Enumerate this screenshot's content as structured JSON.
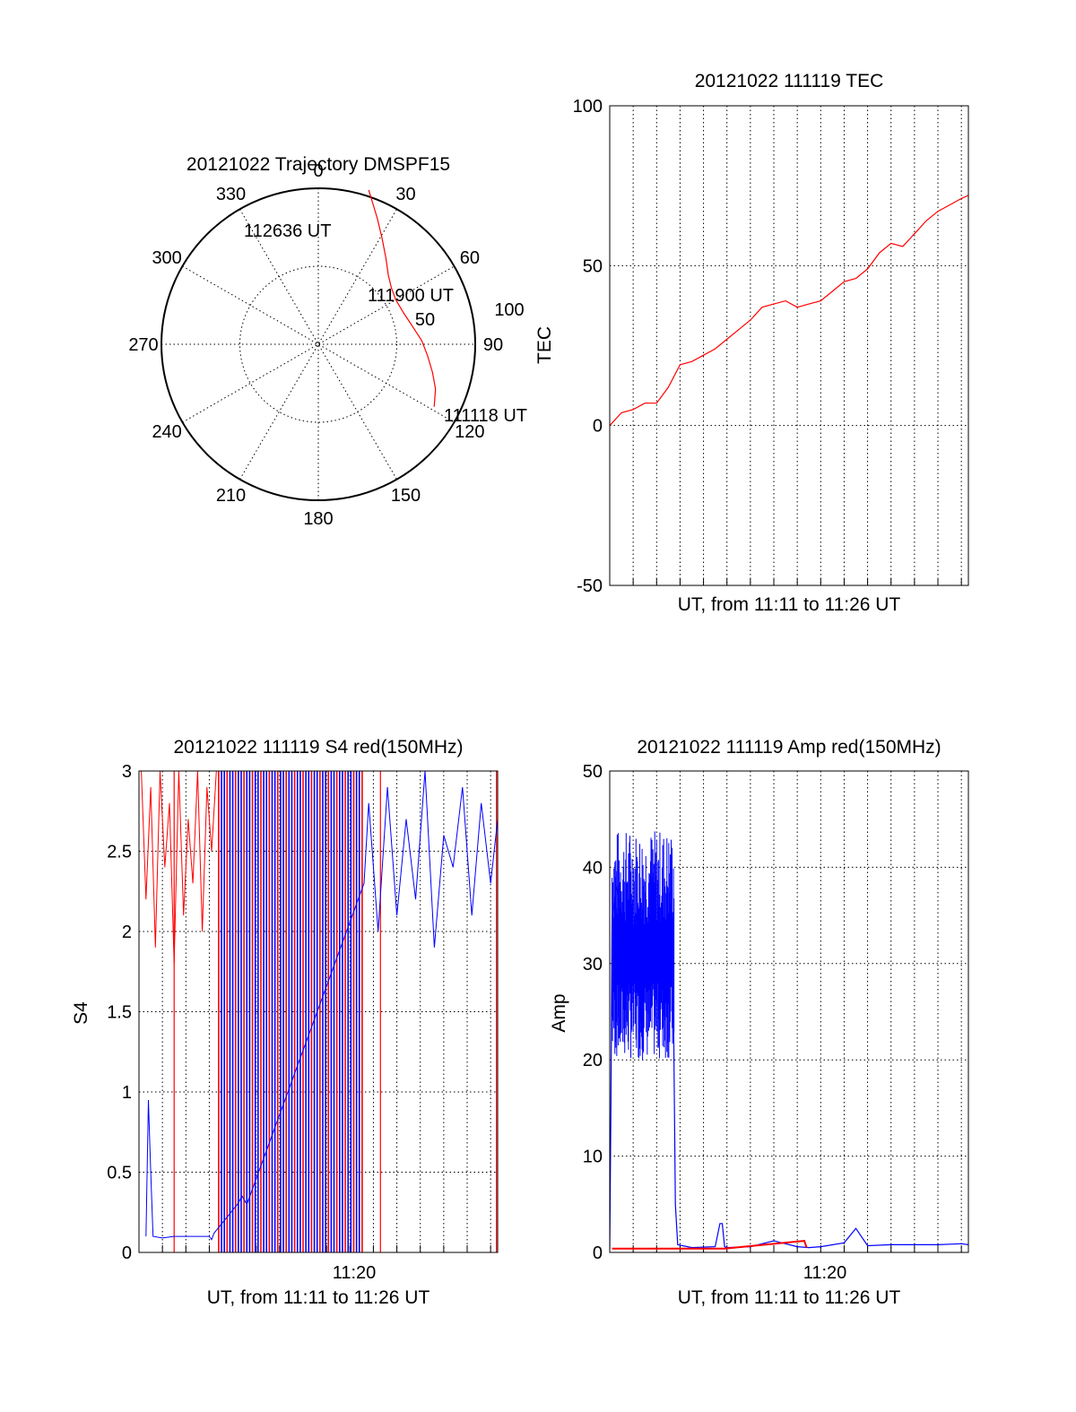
{
  "chart_data": [
    {
      "type": "polar",
      "title": "20121022 Trajectory DMSPF15",
      "angle_labels": [
        "0",
        "30",
        "60",
        "90",
        "120",
        "150",
        "180",
        "210",
        "240",
        "270",
        "300",
        "330"
      ],
      "radial_labels": [
        "50",
        "100"
      ],
      "rmax": 100,
      "trajectory": {
        "color": "#ff0000",
        "points": [
          {
            "az": 118.5,
            "r": 84
          },
          {
            "az": 111,
            "r": 80
          },
          {
            "az": 104,
            "r": 75
          },
          {
            "az": 96,
            "r": 70
          },
          {
            "az": 88,
            "r": 66
          },
          {
            "az": 79,
            "r": 61
          },
          {
            "az": 70,
            "r": 58
          },
          {
            "az": 60,
            "r": 57
          },
          {
            "az": 52,
            "r": 59
          },
          {
            "az": 45,
            "r": 63
          },
          {
            "az": 38,
            "r": 70
          },
          {
            "az": 31,
            "r": 79
          },
          {
            "az": 25,
            "r": 89
          },
          {
            "az": 20,
            "r": 99
          },
          {
            "az": 18,
            "r": 104
          }
        ],
        "annotations": [
          "111118 UT",
          "111900 UT",
          "112636 UT"
        ]
      }
    },
    {
      "type": "line",
      "title": "20121022 111119 TEC",
      "xlabel": "UT, from 11:11 to 11:26 UT",
      "ylabel": "TEC",
      "ylim": [
        -50,
        100
      ],
      "yticks": [
        "-50",
        "0",
        "50",
        "100"
      ],
      "xlim": [
        0,
        15.3
      ],
      "grid": true,
      "series": [
        {
          "color": "#ff0000",
          "x": [
            0,
            0.5,
            1.0,
            1.5,
            2.0,
            2.5,
            3.0,
            3.5,
            4.0,
            4.5,
            5.0,
            5.5,
            6.0,
            6.5,
            7.0,
            7.5,
            8.0,
            8.5,
            9.0,
            9.5,
            10.0,
            10.5,
            11.0,
            11.5,
            12.0,
            12.5,
            13.0,
            13.5,
            14.0,
            14.5,
            15.0,
            15.3
          ],
          "y": [
            0,
            4,
            5,
            7,
            7,
            12,
            19,
            20,
            22,
            24,
            27,
            30,
            33,
            37,
            38,
            39,
            37,
            38,
            39,
            42,
            45,
            46,
            49,
            54,
            57,
            56,
            60,
            64,
            67,
            69,
            71,
            72
          ]
        }
      ]
    },
    {
      "type": "line",
      "title": "20121022 111119 S4 red(150MHz)",
      "xlabel": "UT, from 11:11 to 11:26 UT",
      "ylabel": "S4",
      "ylim": [
        0,
        3
      ],
      "yticks": [
        "0",
        "0.5",
        "1",
        "1.5",
        "2",
        "2.5",
        "3"
      ],
      "xlim": [
        0,
        15.3
      ],
      "xtick_label": "11:20",
      "grid": true,
      "series": [
        {
          "color": "#ff0000",
          "x": [
            0.1,
            0.3,
            0.5,
            0.7,
            0.9,
            1.1,
            1.3,
            1.5,
            1.7,
            1.9,
            2.1,
            2.3,
            2.5,
            2.7,
            2.9,
            3.1,
            3.3
          ],
          "y": [
            3,
            2.2,
            2.9,
            1.9,
            3,
            2.4,
            2.8,
            1.8,
            3,
            2.1,
            2.7,
            2.3,
            3,
            2.0,
            2.9,
            2.5,
            3
          ]
        },
        {
          "color": "#0000ff",
          "x": [
            0.3,
            0.4,
            0.5,
            0.6,
            1.0,
            1.5,
            2.0,
            2.5,
            3.0,
            3.1,
            3.2,
            4.2,
            4.4,
            4.6,
            9.6,
            9.8,
            10.2,
            10.6,
            11.0,
            11.4,
            11.8,
            12.2,
            12.6,
            13.0,
            13.4,
            13.8,
            14.2,
            14.6,
            15.0,
            15.3
          ],
          "y": [
            0.1,
            0.95,
            0.5,
            0.1,
            0.09,
            0.1,
            0.1,
            0.1,
            0.1,
            0.08,
            0.12,
            0.3,
            0.35,
            0.3,
            2.3,
            2.8,
            2.0,
            2.9,
            2.1,
            2.7,
            2.2,
            3.0,
            1.9,
            2.6,
            2.4,
            2.9,
            2.1,
            2.8,
            2.3,
            2.7
          ]
        }
      ]
    },
    {
      "type": "line",
      "title": "20121022 111119 Amp red(150MHz)",
      "xlabel": "UT, from 11:11 to 11:26 UT",
      "ylabel": "Amp",
      "ylim": [
        0,
        50
      ],
      "yticks": [
        "0",
        "10",
        "20",
        "30",
        "40",
        "50"
      ],
      "xlim": [
        0,
        15.3
      ],
      "xtick_label": "11:20",
      "grid": true,
      "series": [
        {
          "color": "#0000ff",
          "x": [
            0,
            0.05,
            0.1,
            0.3,
            0.6,
            0.9,
            1.2,
            1.5,
            1.8,
            2.1,
            2.4,
            2.7,
            2.8,
            2.9,
            3.5,
            4.5,
            4.7,
            4.8,
            4.9,
            5.0,
            6.0,
            7.0,
            8.0,
            8.5,
            9.0,
            10.0,
            10.5,
            11.0,
            12.0,
            13.0,
            14.0,
            15.0,
            15.3
          ],
          "y": [
            0.3,
            15,
            35,
            38,
            34,
            30,
            36,
            29,
            33,
            28,
            31,
            30,
            5,
            0.8,
            0.5,
            0.6,
            3,
            3,
            0.6,
            0.5,
            0.6,
            1.2,
            0.6,
            0.5,
            0.6,
            1.0,
            2.5,
            0.7,
            0.8,
            0.8,
            0.8,
            0.9,
            0.8
          ]
        },
        {
          "color": "#ff0000",
          "x": [
            0.1,
            0.5,
            1.0,
            1.5,
            2.0,
            2.5,
            2.8,
            4.8,
            4.9,
            8.3,
            8.4
          ],
          "y": [
            0.4,
            0.4,
            0.4,
            0.4,
            0.4,
            0.4,
            0.4,
            0.4,
            0.4,
            1.2,
            0.5
          ]
        }
      ]
    }
  ]
}
